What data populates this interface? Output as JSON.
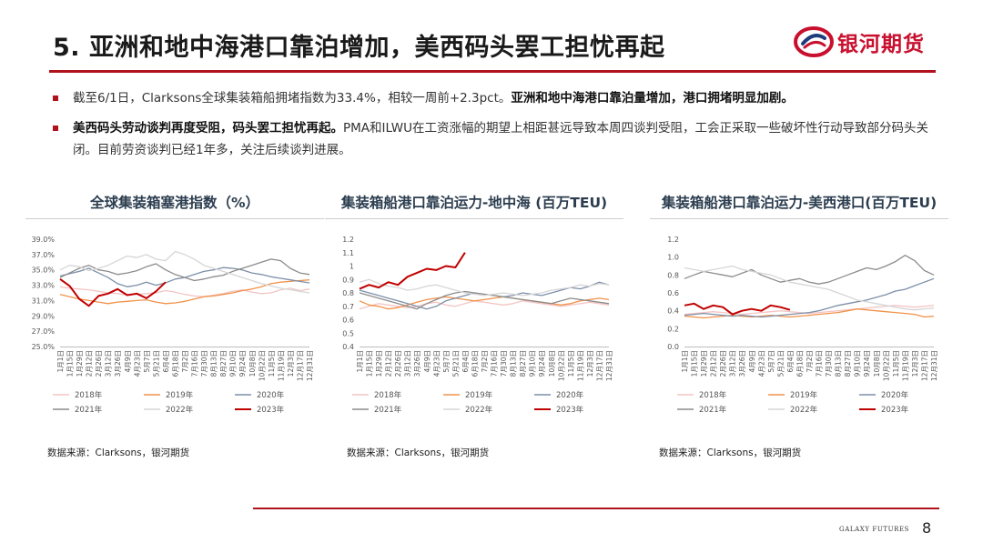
{
  "header": {
    "title": "5. 亚洲和地中海港口靠泊增加，美西码头罢工担忧再起",
    "logo_text": "银河期货"
  },
  "bullets": [
    {
      "text": "截至6/1日，Clarksons全球集装箱船拥堵指数为33.4%，相较一周前+2.3pct。",
      "bold": "亚洲和地中海港口靠泊量增加，港口拥堵明显加剧。"
    },
    {
      "bold": "美西码头劳动谈判再度受阻，码头罢工担忧再起。",
      "text": "PMA和ILWU在工资涨幅的期望上相距甚远导致本周四谈判受阻，工会正采取一些破坏性行动导致部分码头关闭。目前劳资谈判已经1年多，关注后续谈判进展。"
    }
  ],
  "colors": {
    "brand_red": "#c8102e",
    "rule_red": "#b0121c",
    "s2018": "#f4c5c5",
    "s2019": "#f0924a",
    "s2020": "#7d8fa8",
    "s2021": "#8c8c8c",
    "s2022": "#d6d6d6",
    "s2023": "#c00000"
  },
  "chart_data": [
    {
      "type": "line",
      "title": "全球集装箱塞港指数（%）",
      "source": "数据来源：Clarksons，银河期货",
      "y_ticks": [
        "39.0%",
        "37.0%",
        "35.0%",
        "33.0%",
        "31.0%",
        "29.0%",
        "27.0%",
        "25.0%"
      ],
      "ylim": [
        25,
        39
      ],
      "x_ticks": [
        "1月1日",
        "1月15日",
        "1月29日",
        "2月12日",
        "2月26日",
        "3月12日",
        "3月26日",
        "4月9日",
        "4月23日",
        "5月7日",
        "5月21日",
        "6月4日",
        "6月18日",
        "7月2日",
        "7月16日",
        "7月30日",
        "8月13日",
        "8月27日",
        "9月10日",
        "9月24日",
        "10月8日",
        "10月22日",
        "11月5日",
        "11月19日",
        "12月3日",
        "12月17日",
        "12月31日"
      ],
      "legend": [
        "2018年",
        "2019年",
        "2020年",
        "2021年",
        "2022年",
        "2023年"
      ],
      "series": [
        {
          "name": "2018年",
          "values": [
            32.8,
            32.6,
            32.5,
            32.4,
            32.2,
            32.0,
            31.9,
            31.7,
            31.8,
            31.9,
            32.0,
            32.3,
            32.1,
            31.8,
            31.6,
            31.5,
            31.7,
            31.9,
            32.2,
            32.4,
            32.1,
            31.9,
            32.0,
            32.4,
            32.6,
            32.3,
            32.5
          ]
        },
        {
          "name": "2019年",
          "values": [
            31.8,
            31.5,
            31.2,
            31.0,
            30.8,
            30.6,
            30.8,
            30.9,
            31.0,
            31.1,
            30.8,
            30.6,
            30.7,
            30.9,
            31.2,
            31.5,
            31.6,
            31.8,
            32.0,
            32.3,
            32.5,
            32.8,
            33.2,
            33.4,
            33.5,
            33.6,
            33.7
          ]
        },
        {
          "name": "2020年",
          "values": [
            34.2,
            34.5,
            34.8,
            35.2,
            34.6,
            34.0,
            33.2,
            32.8,
            33.0,
            33.4,
            33.0,
            33.3,
            33.8,
            34.0,
            34.4,
            34.8,
            35.0,
            35.3,
            35.2,
            35.0,
            34.6,
            34.4,
            34.1,
            33.9,
            33.7,
            33.5,
            33.3
          ]
        },
        {
          "name": "2021年",
          "values": [
            34.0,
            34.6,
            35.2,
            35.6,
            35.0,
            34.8,
            34.4,
            34.6,
            34.9,
            35.4,
            35.8,
            35.0,
            34.4,
            34.0,
            33.6,
            33.8,
            34.1,
            34.3,
            34.8,
            35.2,
            35.6,
            36.0,
            36.4,
            36.2,
            35.2,
            34.6,
            34.4
          ]
        },
        {
          "name": "2022年",
          "values": [
            35.0,
            35.6,
            35.4,
            34.9,
            35.2,
            35.6,
            36.2,
            36.8,
            36.6,
            37.0,
            36.4,
            36.2,
            37.4,
            37.0,
            36.4,
            35.6,
            35.2,
            34.8,
            34.4,
            34.0,
            33.6,
            33.2,
            32.9,
            32.6,
            32.4,
            32.2,
            32.0
          ]
        },
        {
          "name": "2023年",
          "values": [
            33.8,
            32.9,
            31.2,
            30.3,
            31.6,
            31.9,
            32.5,
            31.7,
            31.9,
            31.3,
            32.2,
            33.4
          ]
        }
      ]
    },
    {
      "type": "line",
      "title": "集装箱船港口靠泊运力-地中海 (百万TEU)",
      "source": "数据来源：Clarksons，银河期货",
      "y_ticks": [
        "1.2",
        "1.1",
        "1",
        "0.9",
        "0.8",
        "0.7",
        "0.6",
        "0.5",
        "0.4"
      ],
      "ylim": [
        0.4,
        1.2
      ],
      "x_ticks": [
        "1月1日",
        "1月15日",
        "1月29日",
        "2月12日",
        "2月26日",
        "3月12日",
        "3月26日",
        "4月9日",
        "4月23日",
        "5月7日",
        "5月21日",
        "6月4日",
        "6月18日",
        "7月2日",
        "7月16日",
        "7月30日",
        "8月13日",
        "8月27日",
        "9月10日",
        "9月24日",
        "10月8日",
        "10月22日",
        "11月5日",
        "11月19日",
        "12月3日",
        "12月17日",
        "12月31日"
      ],
      "legend": [
        "2018年",
        "2019年",
        "2020年",
        "2021年",
        "2022年",
        "2023年"
      ],
      "series": [
        {
          "name": "2018年",
          "values": [
            0.68,
            0.7,
            0.72,
            0.71,
            0.7,
            0.69,
            0.7,
            0.72,
            0.73,
            0.71,
            0.7,
            0.72,
            0.74,
            0.73,
            0.72,
            0.71,
            0.72,
            0.74,
            0.73,
            0.72,
            0.71,
            0.7,
            0.71,
            0.72,
            0.73,
            0.72,
            0.71
          ]
        },
        {
          "name": "2019年",
          "values": [
            0.74,
            0.71,
            0.7,
            0.68,
            0.69,
            0.71,
            0.73,
            0.75,
            0.76,
            0.77,
            0.76,
            0.75,
            0.74,
            0.75,
            0.76,
            0.77,
            0.76,
            0.75,
            0.74,
            0.73,
            0.72,
            0.71,
            0.72,
            0.74,
            0.75,
            0.76,
            0.75
          ]
        },
        {
          "name": "2020年",
          "values": [
            0.82,
            0.8,
            0.78,
            0.76,
            0.74,
            0.72,
            0.7,
            0.68,
            0.7,
            0.74,
            0.76,
            0.78,
            0.8,
            0.79,
            0.78,
            0.77,
            0.78,
            0.8,
            0.79,
            0.78,
            0.8,
            0.82,
            0.84,
            0.83,
            0.85,
            0.88,
            0.86
          ]
        },
        {
          "name": "2021年",
          "values": [
            0.8,
            0.78,
            0.76,
            0.74,
            0.72,
            0.7,
            0.68,
            0.72,
            0.75,
            0.78,
            0.8,
            0.81,
            0.8,
            0.79,
            0.78,
            0.77,
            0.76,
            0.75,
            0.74,
            0.73,
            0.72,
            0.74,
            0.76,
            0.75,
            0.74,
            0.73,
            0.72
          ]
        },
        {
          "name": "2022年",
          "values": [
            0.88,
            0.9,
            0.87,
            0.85,
            0.84,
            0.82,
            0.83,
            0.85,
            0.86,
            0.84,
            0.82,
            0.8,
            0.79,
            0.78,
            0.79,
            0.8,
            0.79,
            0.78,
            0.79,
            0.8,
            0.82,
            0.83,
            0.84,
            0.86,
            0.85,
            0.87,
            0.86
          ]
        },
        {
          "name": "2023年",
          "values": [
            0.83,
            0.86,
            0.84,
            0.88,
            0.86,
            0.92,
            0.95,
            0.98,
            0.97,
            1.0,
            0.99,
            1.1
          ]
        }
      ]
    },
    {
      "type": "line",
      "title": "集装箱船港口靠泊运力-美西港口(百万TEU)",
      "source": "数据来源：Clarksons，银河期货",
      "y_ticks": [
        "1.2",
        "1.0",
        "0.8",
        "0.6",
        "0.4",
        "0.2",
        "0.0"
      ],
      "ylim": [
        0,
        1.2
      ],
      "x_ticks": [
        "1月1日",
        "1月15日",
        "1月29日",
        "2月12日",
        "2月26日",
        "3月12日",
        "3月26日",
        "4月9日",
        "4月23日",
        "5月7日",
        "5月21日",
        "6月4日",
        "6月18日",
        "7月2日",
        "7月16日",
        "7月30日",
        "8月13日",
        "8月27日",
        "9月10日",
        "9月24日",
        "10月8日",
        "10月22日",
        "11月5日",
        "11月19日",
        "12月3日",
        "12月17日",
        "12月31日"
      ],
      "legend": [
        "2018年",
        "2019年",
        "2020年",
        "2021年",
        "2022年",
        "2023年"
      ],
      "series": [
        {
          "name": "2018年",
          "values": [
            0.36,
            0.37,
            0.38,
            0.39,
            0.38,
            0.37,
            0.36,
            0.37,
            0.38,
            0.39,
            0.4,
            0.39,
            0.38,
            0.37,
            0.38,
            0.39,
            0.4,
            0.41,
            0.42,
            0.43,
            0.44,
            0.45,
            0.46,
            0.45,
            0.44,
            0.45,
            0.46
          ]
        },
        {
          "name": "2019年",
          "values": [
            0.34,
            0.33,
            0.32,
            0.33,
            0.34,
            0.35,
            0.34,
            0.33,
            0.34,
            0.35,
            0.34,
            0.33,
            0.34,
            0.35,
            0.36,
            0.37,
            0.38,
            0.4,
            0.42,
            0.41,
            0.4,
            0.39,
            0.38,
            0.37,
            0.36,
            0.33,
            0.34
          ]
        },
        {
          "name": "2020年",
          "values": [
            0.35,
            0.36,
            0.37,
            0.36,
            0.35,
            0.34,
            0.35,
            0.34,
            0.33,
            0.34,
            0.35,
            0.36,
            0.37,
            0.38,
            0.4,
            0.43,
            0.46,
            0.48,
            0.5,
            0.52,
            0.55,
            0.58,
            0.62,
            0.64,
            0.68,
            0.72,
            0.76
          ]
        },
        {
          "name": "2021年",
          "values": [
            0.76,
            0.8,
            0.84,
            0.82,
            0.8,
            0.78,
            0.82,
            0.86,
            0.8,
            0.76,
            0.72,
            0.74,
            0.76,
            0.72,
            0.7,
            0.72,
            0.76,
            0.8,
            0.84,
            0.88,
            0.86,
            0.9,
            0.95,
            1.02,
            0.96,
            0.85,
            0.8
          ]
        },
        {
          "name": "2022年",
          "values": [
            0.88,
            0.86,
            0.84,
            0.86,
            0.88,
            0.9,
            0.86,
            0.84,
            0.82,
            0.8,
            0.76,
            0.72,
            0.7,
            0.68,
            0.66,
            0.64,
            0.6,
            0.56,
            0.52,
            0.5,
            0.48,
            0.46,
            0.44,
            0.42,
            0.41,
            0.42,
            0.43
          ]
        },
        {
          "name": "2023年",
          "values": [
            0.46,
            0.48,
            0.42,
            0.46,
            0.44,
            0.36,
            0.4,
            0.42,
            0.4,
            0.46,
            0.44,
            0.41
          ]
        }
      ]
    }
  ],
  "footer": {
    "brand": "GALAXY FUTURES",
    "page": "8"
  }
}
